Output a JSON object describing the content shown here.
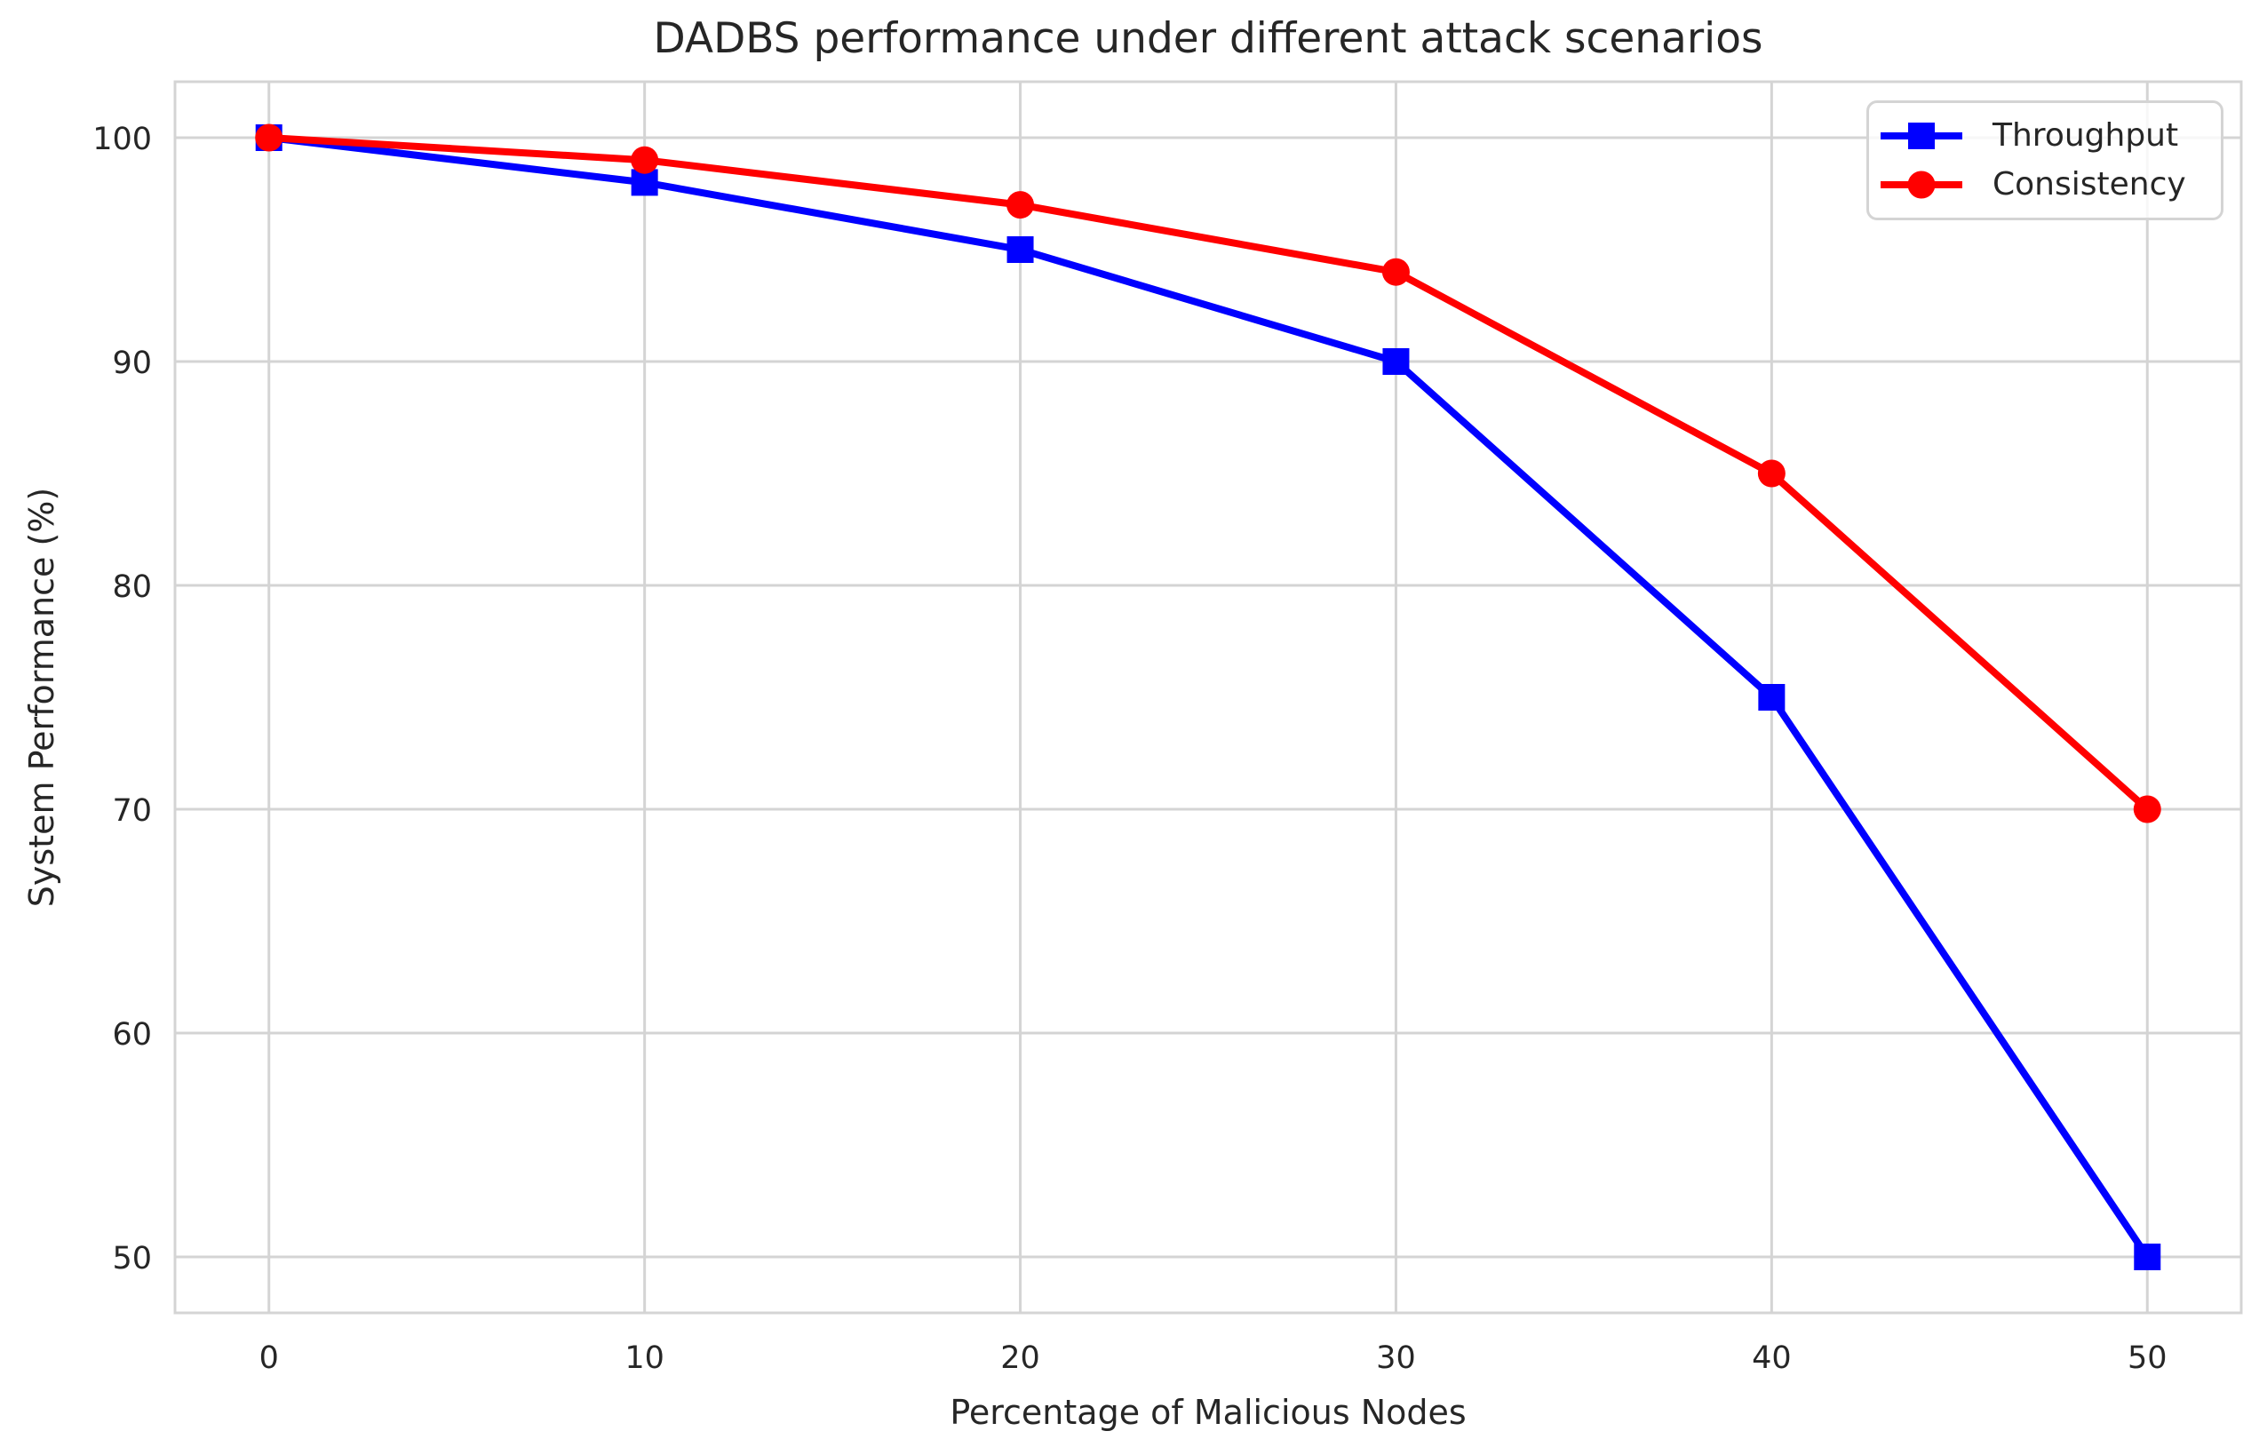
{
  "chart_data": {
    "type": "line",
    "title": "DADBS performance under different attack scenarios",
    "xlabel": "Percentage of Malicious Nodes",
    "ylabel": "System Performance (%)",
    "x": [
      0,
      10,
      20,
      30,
      40,
      50
    ],
    "series": [
      {
        "name": "Throughput",
        "values": [
          100,
          98,
          95,
          90,
          75,
          50
        ],
        "color": "#0000ff",
        "marker": "square"
      },
      {
        "name": "Consistency",
        "values": [
          100,
          99,
          97,
          94,
          85,
          70
        ],
        "color": "#ff0000",
        "marker": "circle"
      }
    ],
    "xticks": [
      "0",
      "10",
      "20",
      "30",
      "40",
      "50"
    ],
    "yticks": [
      "50",
      "60",
      "70",
      "80",
      "90",
      "100"
    ],
    "xlim": [
      -2.5,
      52.5
    ],
    "ylim": [
      47.5,
      102.5
    ],
    "grid": true,
    "legend_position": "upper right",
    "colors": {
      "grid": "#d4d4d4",
      "spine": "#d4d4d4",
      "text": "#262626",
      "background": "#ffffff"
    }
  }
}
